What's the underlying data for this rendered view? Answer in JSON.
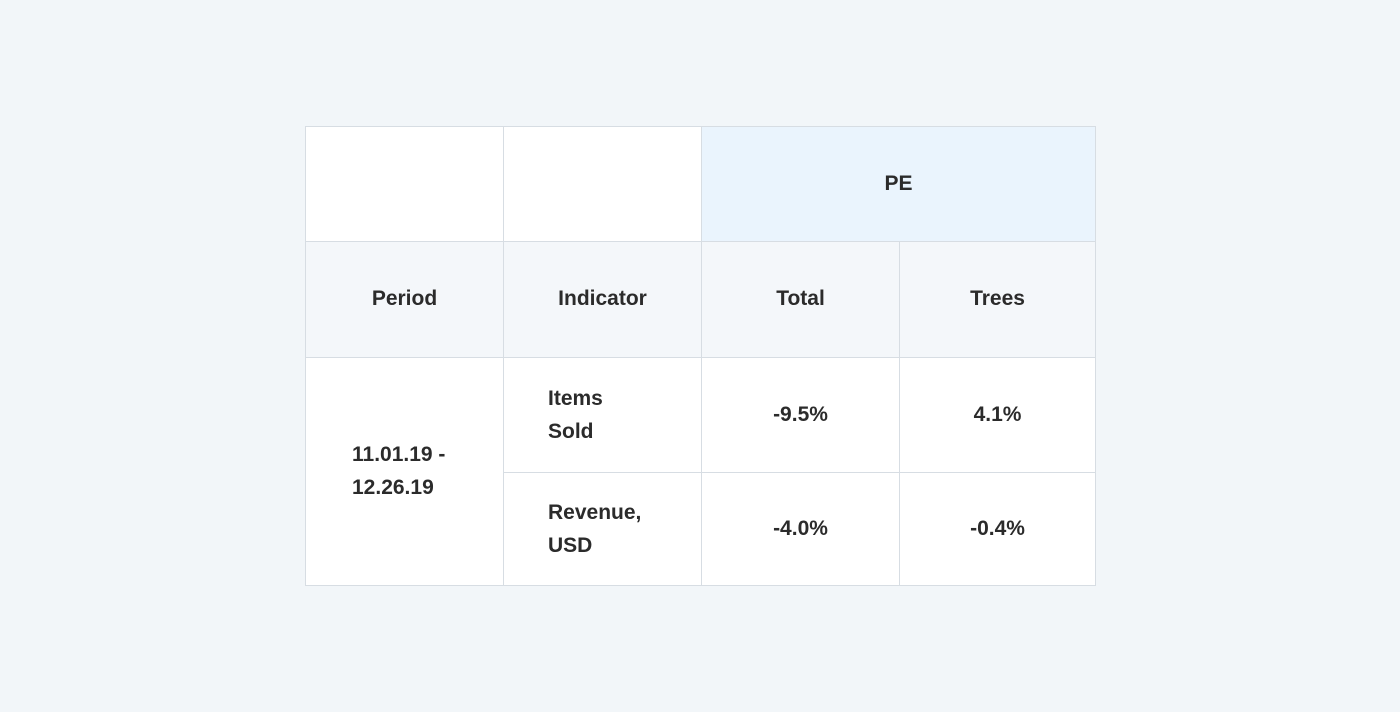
{
  "table": {
    "group_header": "PE",
    "columns": [
      "Period",
      "Indicator",
      "Total",
      "Trees"
    ],
    "period_lines": [
      "11.01.19 -",
      "12.26.19"
    ],
    "rows": [
      {
        "indicator_lines": [
          "Items",
          "Sold"
        ],
        "total": "-9.5%",
        "trees": "4.1%"
      },
      {
        "indicator_lines": [
          "Revenue,",
          "USD"
        ],
        "total": "-4.0%",
        "trees": "-0.4%"
      }
    ]
  },
  "colors": {
    "page_background": "#f2f6f9",
    "group_header_background": "#eaf4fd",
    "header_row_background": "#f4f7fa",
    "border": "#d7dde3",
    "text": "#2b2b2b"
  }
}
